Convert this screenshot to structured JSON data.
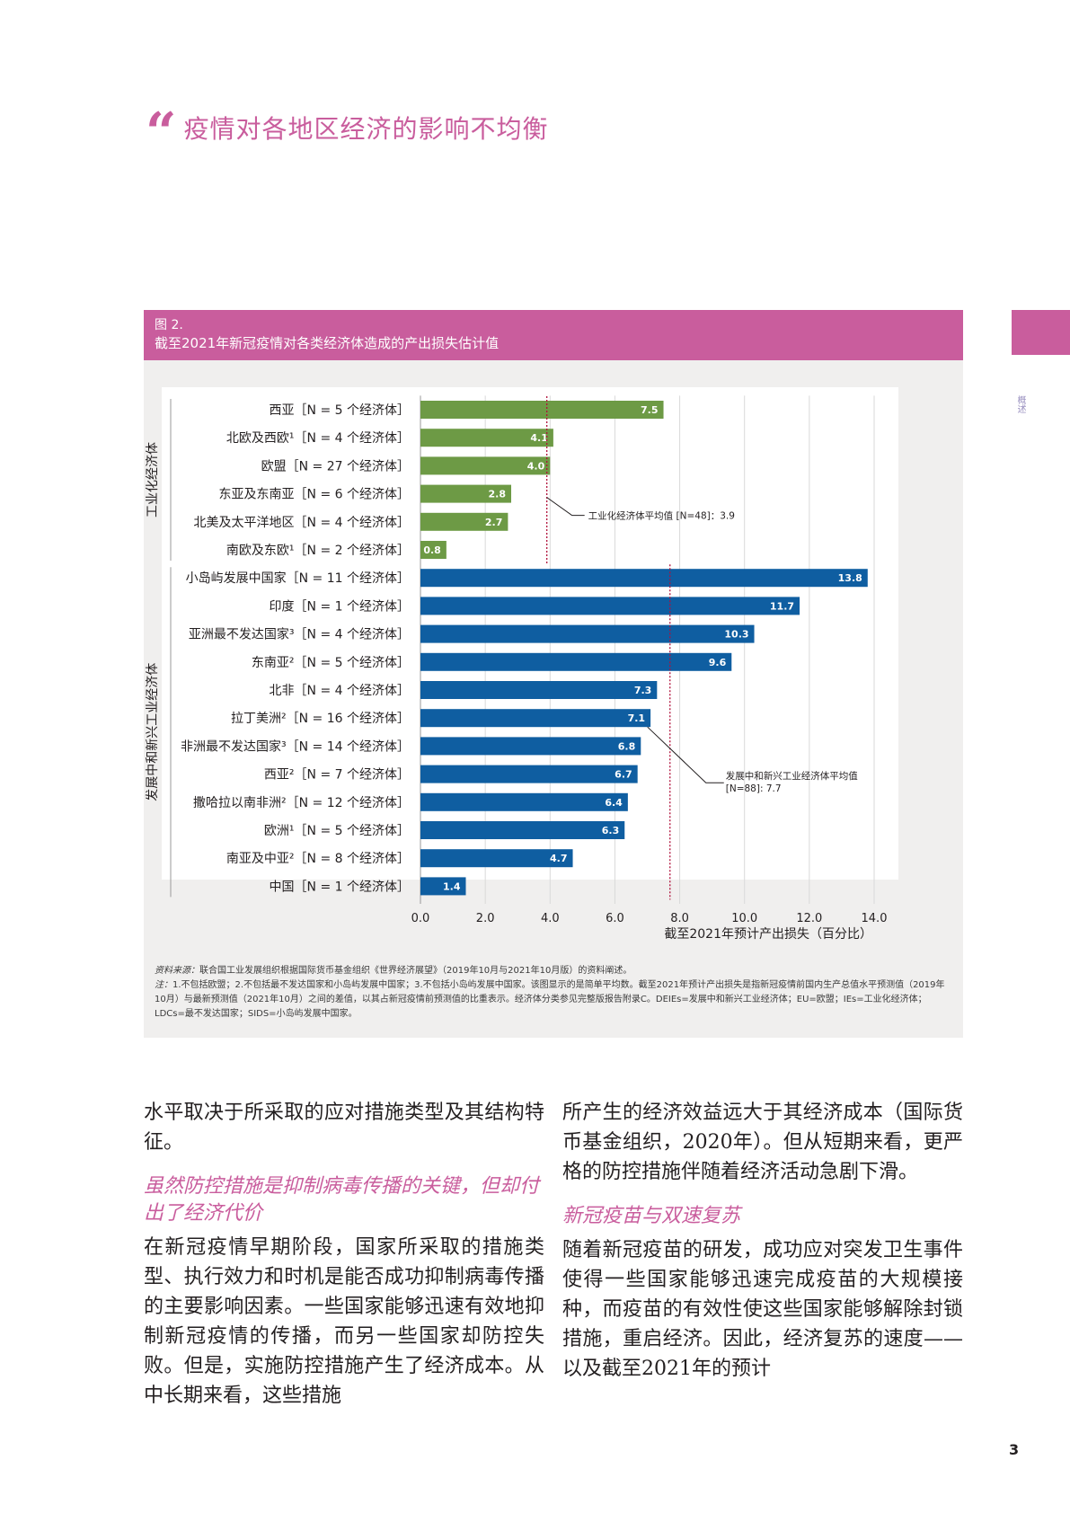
{
  "header": {
    "quote_mark": "“",
    "title": "疫情对各地区经济的影响不均衡"
  },
  "side": {
    "label": "概述"
  },
  "figure": {
    "number": "图 2.",
    "title": "截至2021年新冠疫情对各类经济体造成的产出损失估计值",
    "source_label": "资料来源：",
    "source": "联合国工业发展组织根据国际货币基金组织《世界经济展望》（2019年10月与2021年10月版）的资料阐述。",
    "note_label": "注：",
    "note": "1.不包括欧盟；2.不包括最不发达国家和小岛屿发展中国家；3.不包括小岛屿发展中国家。该图显示的是简单平均数。截至2021年预计产出损失是指新冠疫情前国内生产总值水平预测值（2019年10月）与最新预测值（2021年10月）之间的差值，以其占新冠疫情前预测值的比重表示。经济体分类参见完整版报告附录C。DEIEs=发展中和新兴工业经济体；EU=欧盟；IEs=工业化经济体；LDCs=最不发达国家；SIDS=小岛屿发展中国家。"
  },
  "chart_data": {
    "type": "bar",
    "orientation": "horizontal",
    "title": "截至2021年新冠疫情对各类经济体造成的产出损失估计值",
    "xlabel": "截至2021年预计产出损失（百分比）",
    "xlim": [
      0,
      14
    ],
    "xticks": [
      "0.0",
      "2.0",
      "4.0",
      "6.0",
      "8.0",
      "10.0",
      "12.0",
      "14.0"
    ],
    "colors": {
      "ies": "#6d9a45",
      "deies": "#0f5ea1"
    },
    "groups": [
      {
        "name": "工业化经济体",
        "color_key": "ies",
        "average_label": "工业化经济体平均值 [N=48]：3.9",
        "average": 3.9,
        "items": [
          {
            "label": "西亚［N = 5  个经济体］",
            "value": 7.5,
            "value_label": "7.5"
          },
          {
            "label": "北欧及西欧¹［N = 4  个经济体］",
            "value": 4.1,
            "value_label": "4.1"
          },
          {
            "label": "欧盟［N = 27  个经济体］",
            "value": 4.0,
            "value_label": "4.0"
          },
          {
            "label": "东亚及东南亚［N = 6  个经济体］",
            "value": 2.8,
            "value_label": "2.8"
          },
          {
            "label": "北美及太平洋地区［N = 4  个经济体］",
            "value": 2.7,
            "value_label": "2.7"
          },
          {
            "label": "南欧及东欧¹［N = 2  个经济体］",
            "value": 0.8,
            "value_label": "0.8"
          }
        ]
      },
      {
        "name": "发展中和新兴工业经济体",
        "color_key": "deies",
        "average_label": "发展中和新兴工业经济体平均值 [N=88]: 7.7",
        "average": 7.7,
        "items": [
          {
            "label": "小岛屿发展中国家［N = 11  个经济体］",
            "value": 13.8,
            "value_label": "13.8"
          },
          {
            "label": "印度［N = 1  个经济体］",
            "value": 11.7,
            "value_label": "11.7"
          },
          {
            "label": "亚洲最不发达国家³［N = 4  个经济体］",
            "value": 10.3,
            "value_label": "10.3"
          },
          {
            "label": "东南亚²［N = 5  个经济体］",
            "value": 9.6,
            "value_label": "9.6"
          },
          {
            "label": "北非［N = 4  个经济体］",
            "value": 7.3,
            "value_label": "7.3"
          },
          {
            "label": "拉丁美洲²［N = 16  个经济体］",
            "value": 7.1,
            "value_label": "7.1"
          },
          {
            "label": "非洲最不发达国家³［N = 14  个经济体］",
            "value": 6.8,
            "value_label": "6.8"
          },
          {
            "label": "西亚²［N = 7  个经济体］",
            "value": 6.7,
            "value_label": "6.7"
          },
          {
            "label": "撒哈拉以南非洲²［N = 12  个经济体］",
            "value": 6.4,
            "value_label": "6.4"
          },
          {
            "label": "欧洲¹［N = 5  个经济体］",
            "value": 6.3,
            "value_label": "6.3"
          },
          {
            "label": "南亚及中亚²［N = 8  个经济体］",
            "value": 4.7,
            "value_label": "4.7"
          },
          {
            "label": "中国［N = 1  个经济体］",
            "value": 1.4,
            "value_label": "1.4"
          }
        ]
      }
    ]
  },
  "body": {
    "left": {
      "p1": "水平取决于所采取的应对措施类型及其结构特征。",
      "h1": "虽然防控措施是抑制病毒传播的关键，但却付出了经济代价",
      "p2": "在新冠疫情早期阶段，国家所采取的措施类型、执行效力和时机是能否成功抑制病毒传播的主要影响因素。一些国家能够迅速有效地抑制新冠疫情的传播，而另一些国家却防控失败。但是，实施防控措施产生了经济成本。从中长期来看，这些措施"
    },
    "right": {
      "p1": "所产生的经济效益远大于其经济成本（国际货币基金组织，2020年）。但从短期来看，更严格的防控措施伴随着经济活动急剧下滑。",
      "h1": "新冠疫苗与双速复苏",
      "p2": "随着新冠疫苗的研发，成功应对突发卫生事件使得一些国家能够迅速完成疫苗的大规模接种，而疫苗的有效性使这些国家能够解除封锁措施，重启经济。因此，经济复苏的速度——以及截至2021年的预计"
    }
  },
  "page_number": "3"
}
